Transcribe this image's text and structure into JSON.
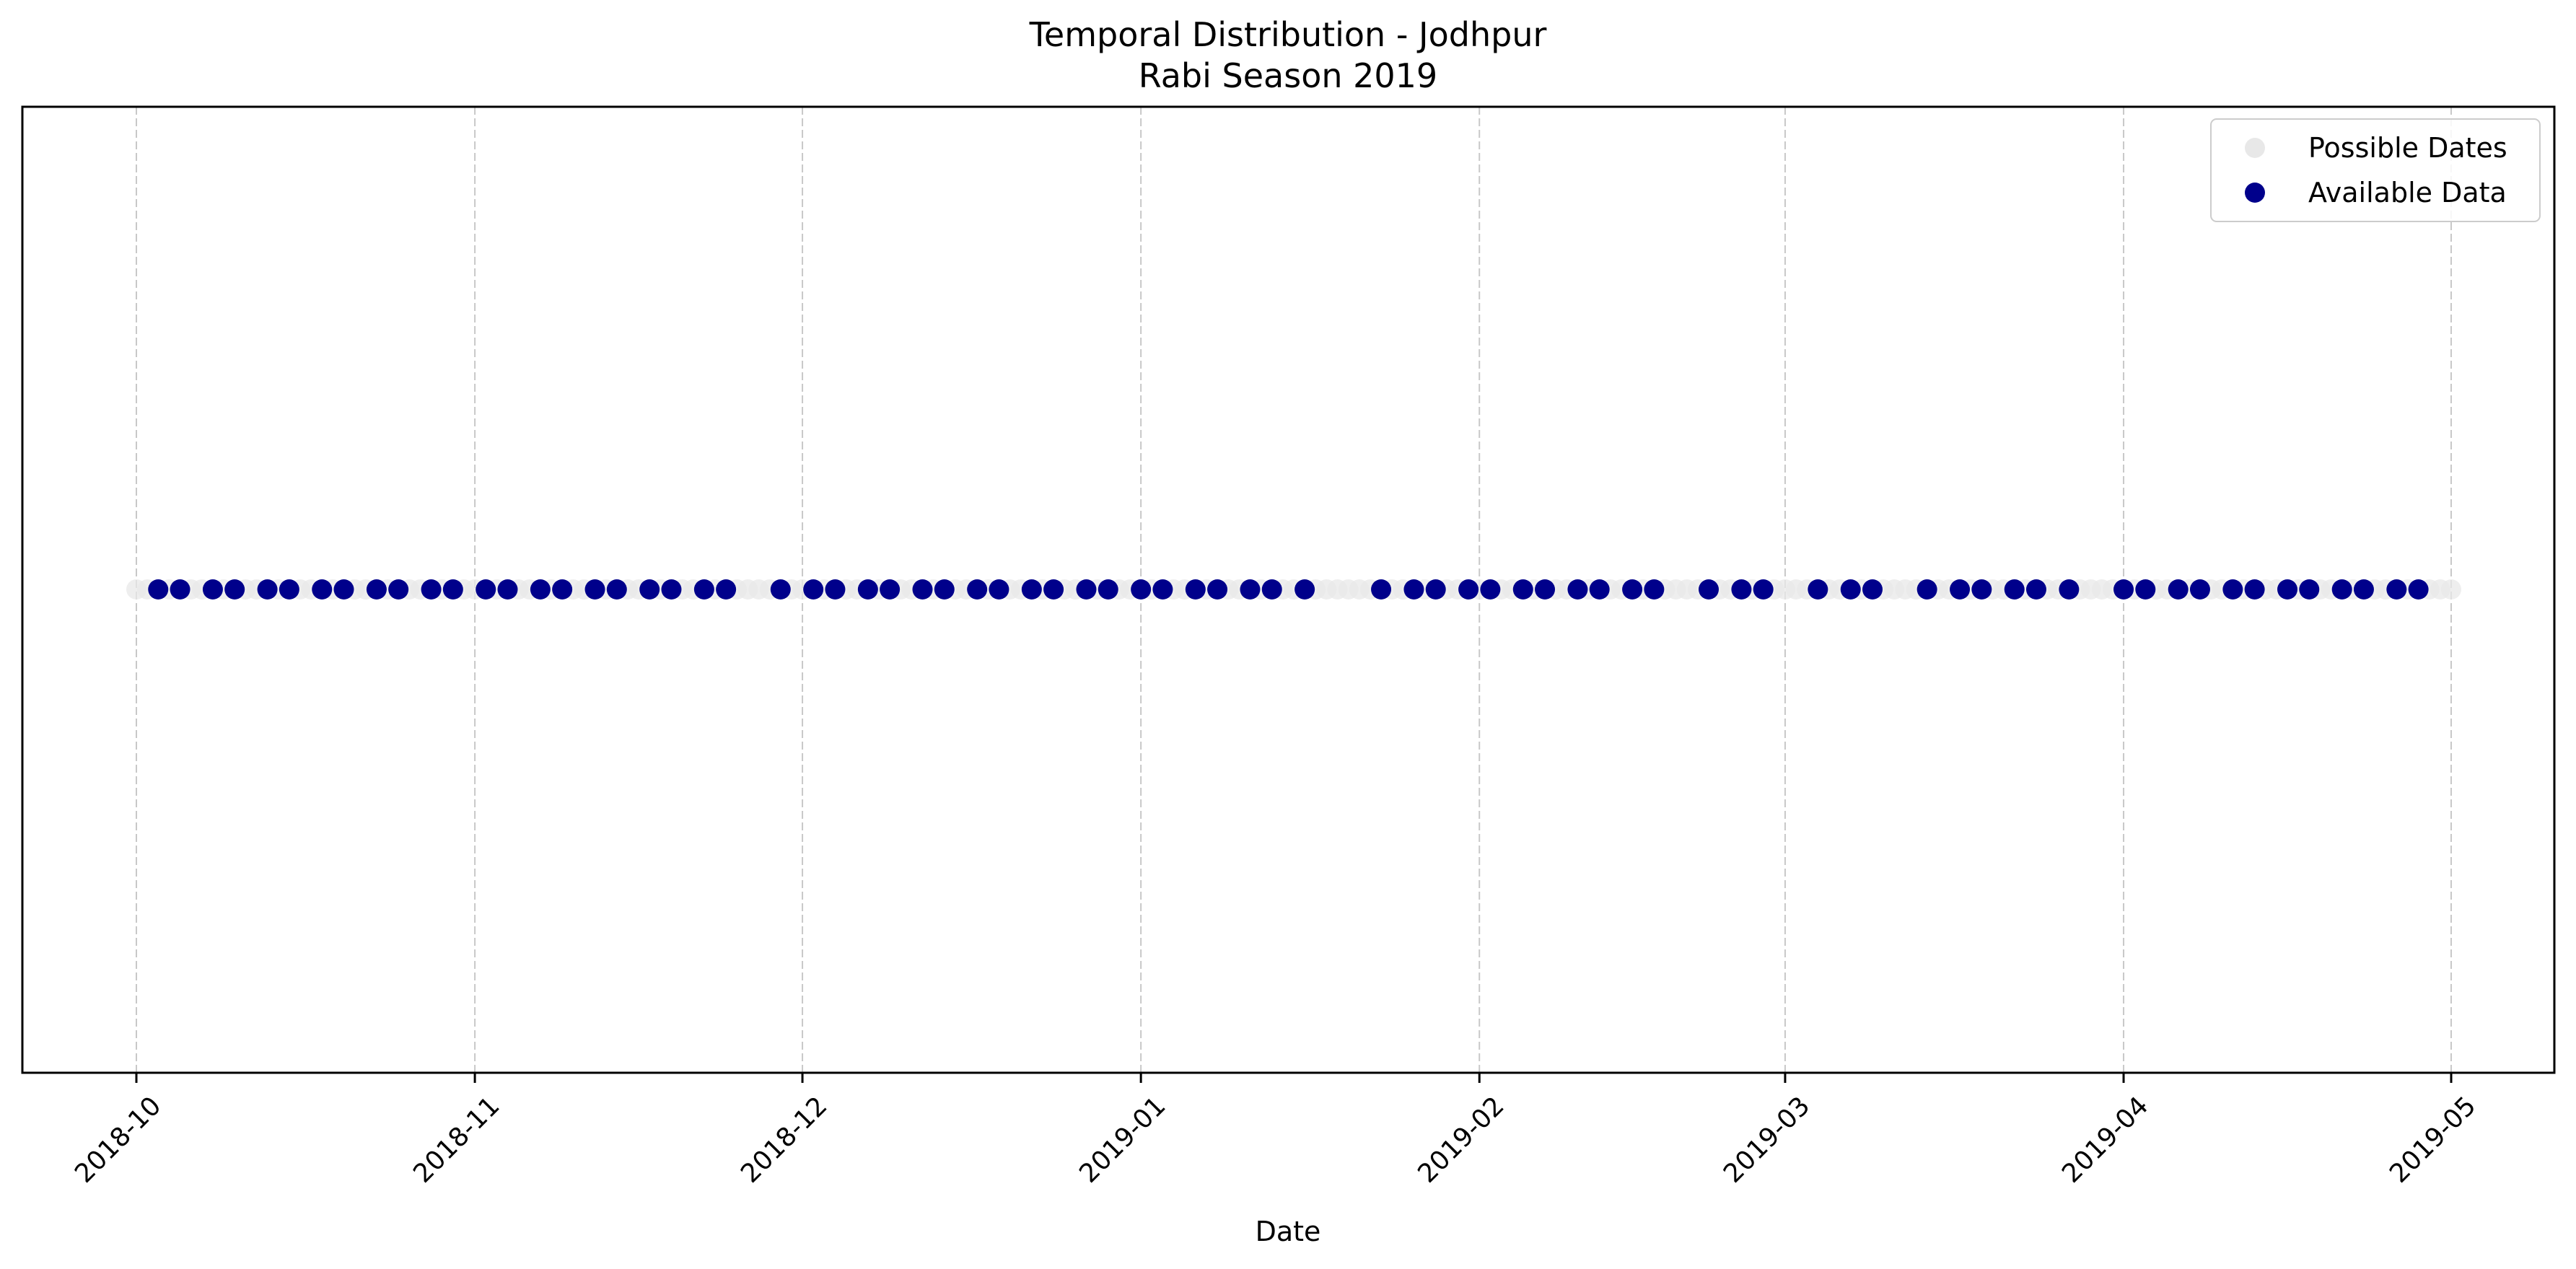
{
  "chart_data": {
    "type": "scatter",
    "title": "Temporal Distribution - Jodhpur",
    "subtitle": "Rabi Season 2019",
    "xlabel": "Date",
    "ylabel": "",
    "x_range": [
      "2018-10-01",
      "2019-05-01"
    ],
    "x_ticks": [
      "2018-10",
      "2018-11",
      "2018-12",
      "2019-01",
      "2019-02",
      "2019-03",
      "2019-04",
      "2019-05"
    ],
    "grid": "vertical dashed",
    "legend_position": "top-right",
    "series": [
      {
        "name": "Possible Dates",
        "color": "#e8e8e8",
        "description_of_range": "every date from start to end",
        "start": "2018-10-01",
        "end": "2019-05-01",
        "step_days": 1
      },
      {
        "name": "Available Data",
        "color": "#00008b",
        "x": [
          "2018-10-03",
          "2018-10-05",
          "2018-10-08",
          "2018-10-10",
          "2018-10-13",
          "2018-10-15",
          "2018-10-18",
          "2018-10-20",
          "2018-10-23",
          "2018-10-25",
          "2018-10-28",
          "2018-10-30",
          "2018-11-02",
          "2018-11-04",
          "2018-11-07",
          "2018-11-09",
          "2018-11-12",
          "2018-11-14",
          "2018-11-17",
          "2018-11-19",
          "2018-11-22",
          "2018-11-24",
          "2018-11-29",
          "2018-12-02",
          "2018-12-04",
          "2018-12-07",
          "2018-12-09",
          "2018-12-12",
          "2018-12-14",
          "2018-12-17",
          "2018-12-19",
          "2018-12-22",
          "2018-12-24",
          "2018-12-27",
          "2018-12-29",
          "2019-01-01",
          "2019-01-03",
          "2019-01-06",
          "2019-01-08",
          "2019-01-11",
          "2019-01-13",
          "2019-01-16",
          "2019-01-23",
          "2019-01-26",
          "2019-01-28",
          "2019-01-31",
          "2019-02-02",
          "2019-02-05",
          "2019-02-07",
          "2019-02-10",
          "2019-02-12",
          "2019-02-15",
          "2019-02-17",
          "2019-02-22",
          "2019-02-25",
          "2019-02-27",
          "2019-03-04",
          "2019-03-07",
          "2019-03-09",
          "2019-03-14",
          "2019-03-17",
          "2019-03-19",
          "2019-03-22",
          "2019-03-24",
          "2019-03-27",
          "2019-04-01",
          "2019-04-03",
          "2019-04-06",
          "2019-04-08",
          "2019-04-11",
          "2019-04-13",
          "2019-04-16",
          "2019-04-18",
          "2019-04-21",
          "2019-04-23",
          "2019-04-26",
          "2019-04-28"
        ]
      }
    ]
  }
}
